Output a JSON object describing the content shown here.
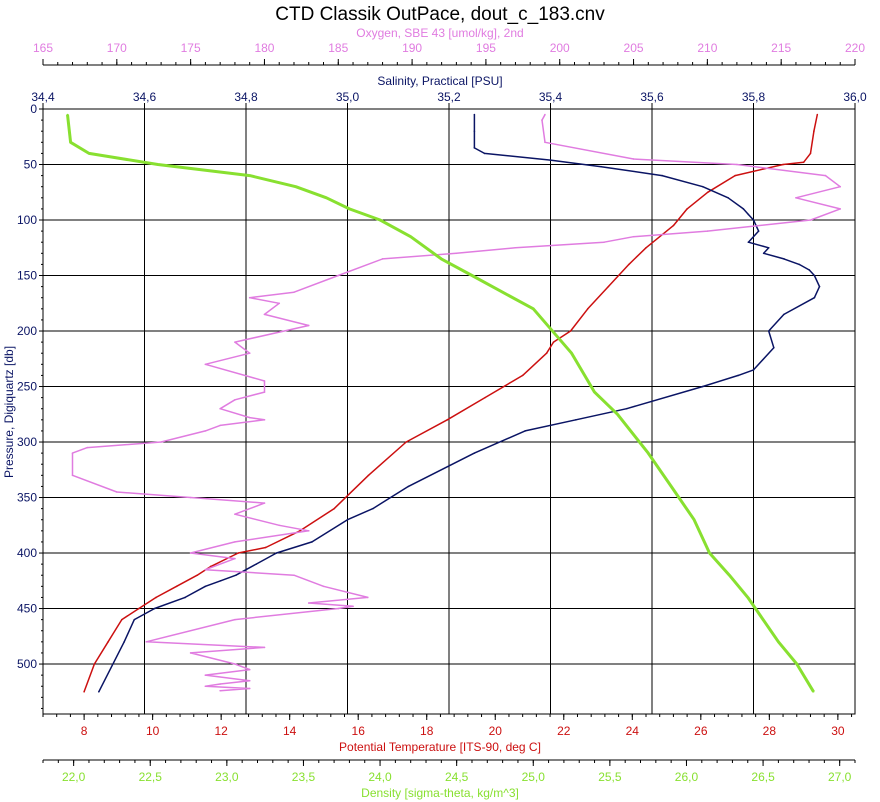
{
  "chart_data": {
    "type": "line",
    "title": "CTD Classik OutPace, dout_c_183.cnv",
    "grid": true,
    "y_axis": {
      "label": "Pressure, Digiquartz [db]",
      "range": [
        0,
        545
      ],
      "inverted": true,
      "ticks": [
        "0",
        "50",
        "100",
        "150",
        "200",
        "250",
        "300",
        "350",
        "400",
        "450",
        "500"
      ]
    },
    "x_axes": [
      {
        "key": "oxygen",
        "position": "top-1",
        "label": "Oxygen, SBE 43 [umol/kg], 2nd",
        "color": "#e07ce0",
        "range": [
          165,
          220
        ],
        "ticks": [
          "165",
          "170",
          "175",
          "180",
          "185",
          "190",
          "195",
          "200",
          "205",
          "210",
          "215",
          "220"
        ]
      },
      {
        "key": "salinity",
        "position": "top-2",
        "label": "Salinity, Practical [PSU]",
        "color": "#0a1464",
        "range": [
          34.4,
          36.0
        ],
        "ticks": [
          "34,4",
          "34,6",
          "34,8",
          "35,0",
          "35,2",
          "35,4",
          "35,6",
          "35,8",
          "36,0"
        ]
      },
      {
        "key": "temperature",
        "position": "bottom-1",
        "label": "Potential Temperature [ITS-90, deg C]",
        "color": "#cc1010",
        "range": [
          6.8,
          30.5
        ],
        "ticks": [
          "8",
          "10",
          "12",
          "14",
          "16",
          "18",
          "20",
          "22",
          "24",
          "26",
          "28",
          "30"
        ]
      },
      {
        "key": "density",
        "position": "bottom-2",
        "label": "Density [sigma-theta, kg/m^3]",
        "color": "#88e030",
        "range": [
          21.8,
          27.1
        ],
        "ticks": [
          "22,0",
          "22,5",
          "23,0",
          "23,5",
          "24,0",
          "24,5",
          "25,0",
          "25,5",
          "26,0",
          "26,5",
          "27,0"
        ]
      }
    ],
    "series": [
      {
        "axis": "temperature",
        "color": "#cc1010",
        "x": [
          29.4,
          29.3,
          29.2,
          29.0,
          28.4,
          27.0,
          26.2,
          25.6,
          25.2,
          24.4,
          23.9,
          23.3,
          22.7,
          22.2,
          21.7,
          21.5,
          20.8,
          19.7,
          18.6,
          17.4,
          16.3,
          15.3,
          14.3,
          13.3,
          12.5,
          11.7,
          11.3,
          10.7,
          10.1,
          9.6,
          9.1,
          8.7,
          8.3,
          8.0
        ],
        "y": [
          5,
          20,
          40,
          48,
          50,
          60,
          75,
          90,
          105,
          125,
          140,
          160,
          180,
          200,
          210,
          220,
          240,
          260,
          280,
          300,
          330,
          360,
          380,
          395,
          400,
          412,
          420,
          430,
          440,
          450,
          460,
          480,
          500,
          525
        ]
      },
      {
        "axis": "salinity",
        "color": "#0a1464",
        "x": [
          35.25,
          35.25,
          35.25,
          35.27,
          35.4,
          35.5,
          35.62,
          35.7,
          35.75,
          35.78,
          35.79,
          35.8,
          35.81,
          35.79,
          35.83,
          35.82,
          35.86,
          35.89,
          35.91,
          35.92,
          35.93,
          35.92,
          35.86,
          35.83,
          35.84,
          35.8,
          35.77,
          35.7,
          35.55,
          35.45,
          35.35,
          35.25,
          35.12,
          35.05,
          35.0,
          34.93,
          34.86,
          34.82,
          34.78,
          34.75,
          34.72,
          34.68,
          34.62,
          34.58,
          34.56,
          34.51
        ],
        "y": [
          5,
          20,
          35,
          40,
          46,
          52,
          60,
          70,
          80,
          90,
          95,
          100,
          110,
          120,
          125,
          130,
          135,
          140,
          145,
          150,
          160,
          170,
          185,
          200,
          215,
          235,
          240,
          250,
          270,
          280,
          290,
          310,
          340,
          360,
          370,
          390,
          400,
          410,
          420,
          425,
          430,
          440,
          450,
          460,
          480,
          525
        ]
      },
      {
        "axis": "oxygen",
        "color": "#e07ce0",
        "x": [
          199,
          198.8,
          199,
          205,
          212,
          218,
          219,
          216,
          219,
          217,
          210,
          205,
          203,
          197,
          193,
          188,
          185,
          182,
          179,
          181,
          180,
          183,
          178,
          179,
          176,
          180,
          180,
          178,
          177,
          179,
          180,
          177,
          176,
          173,
          168,
          167,
          167,
          170,
          175,
          180,
          178,
          181,
          183,
          178,
          175,
          178,
          176,
          182,
          184,
          187,
          183,
          186,
          185,
          178,
          172,
          180,
          175,
          178,
          179,
          176,
          179,
          177,
          176,
          179,
          177
        ],
        "y": [
          5,
          10,
          30,
          45,
          50,
          60,
          70,
          80,
          90,
          100,
          110,
          115,
          120,
          125,
          130,
          135,
          150,
          165,
          170,
          175,
          185,
          195,
          210,
          220,
          230,
          245,
          255,
          262,
          270,
          278,
          280,
          285,
          290,
          300,
          305,
          310,
          330,
          345,
          350,
          355,
          365,
          375,
          380,
          390,
          400,
          405,
          415,
          420,
          430,
          440,
          445,
          448,
          450,
          460,
          480,
          485,
          490,
          500,
          505,
          510,
          515,
          518,
          520,
          522,
          524
        ]
      },
      {
        "axis": "density",
        "color": "#88e030",
        "x": [
          21.96,
          21.98,
          22.1,
          22.55,
          23.15,
          23.45,
          23.65,
          23.8,
          24.0,
          24.2,
          24.4,
          24.6,
          24.8,
          25.0,
          25.25,
          25.4,
          25.55,
          25.75,
          25.9,
          26.05,
          26.15,
          26.28,
          26.4,
          26.5,
          26.6,
          26.72,
          26.83
        ],
        "y": [
          5,
          30,
          40,
          50,
          60,
          70,
          80,
          90,
          100,
          115,
          135,
          150,
          165,
          180,
          220,
          255,
          275,
          310,
          340,
          370,
          400,
          420,
          440,
          460,
          480,
          500,
          525
        ]
      }
    ]
  }
}
